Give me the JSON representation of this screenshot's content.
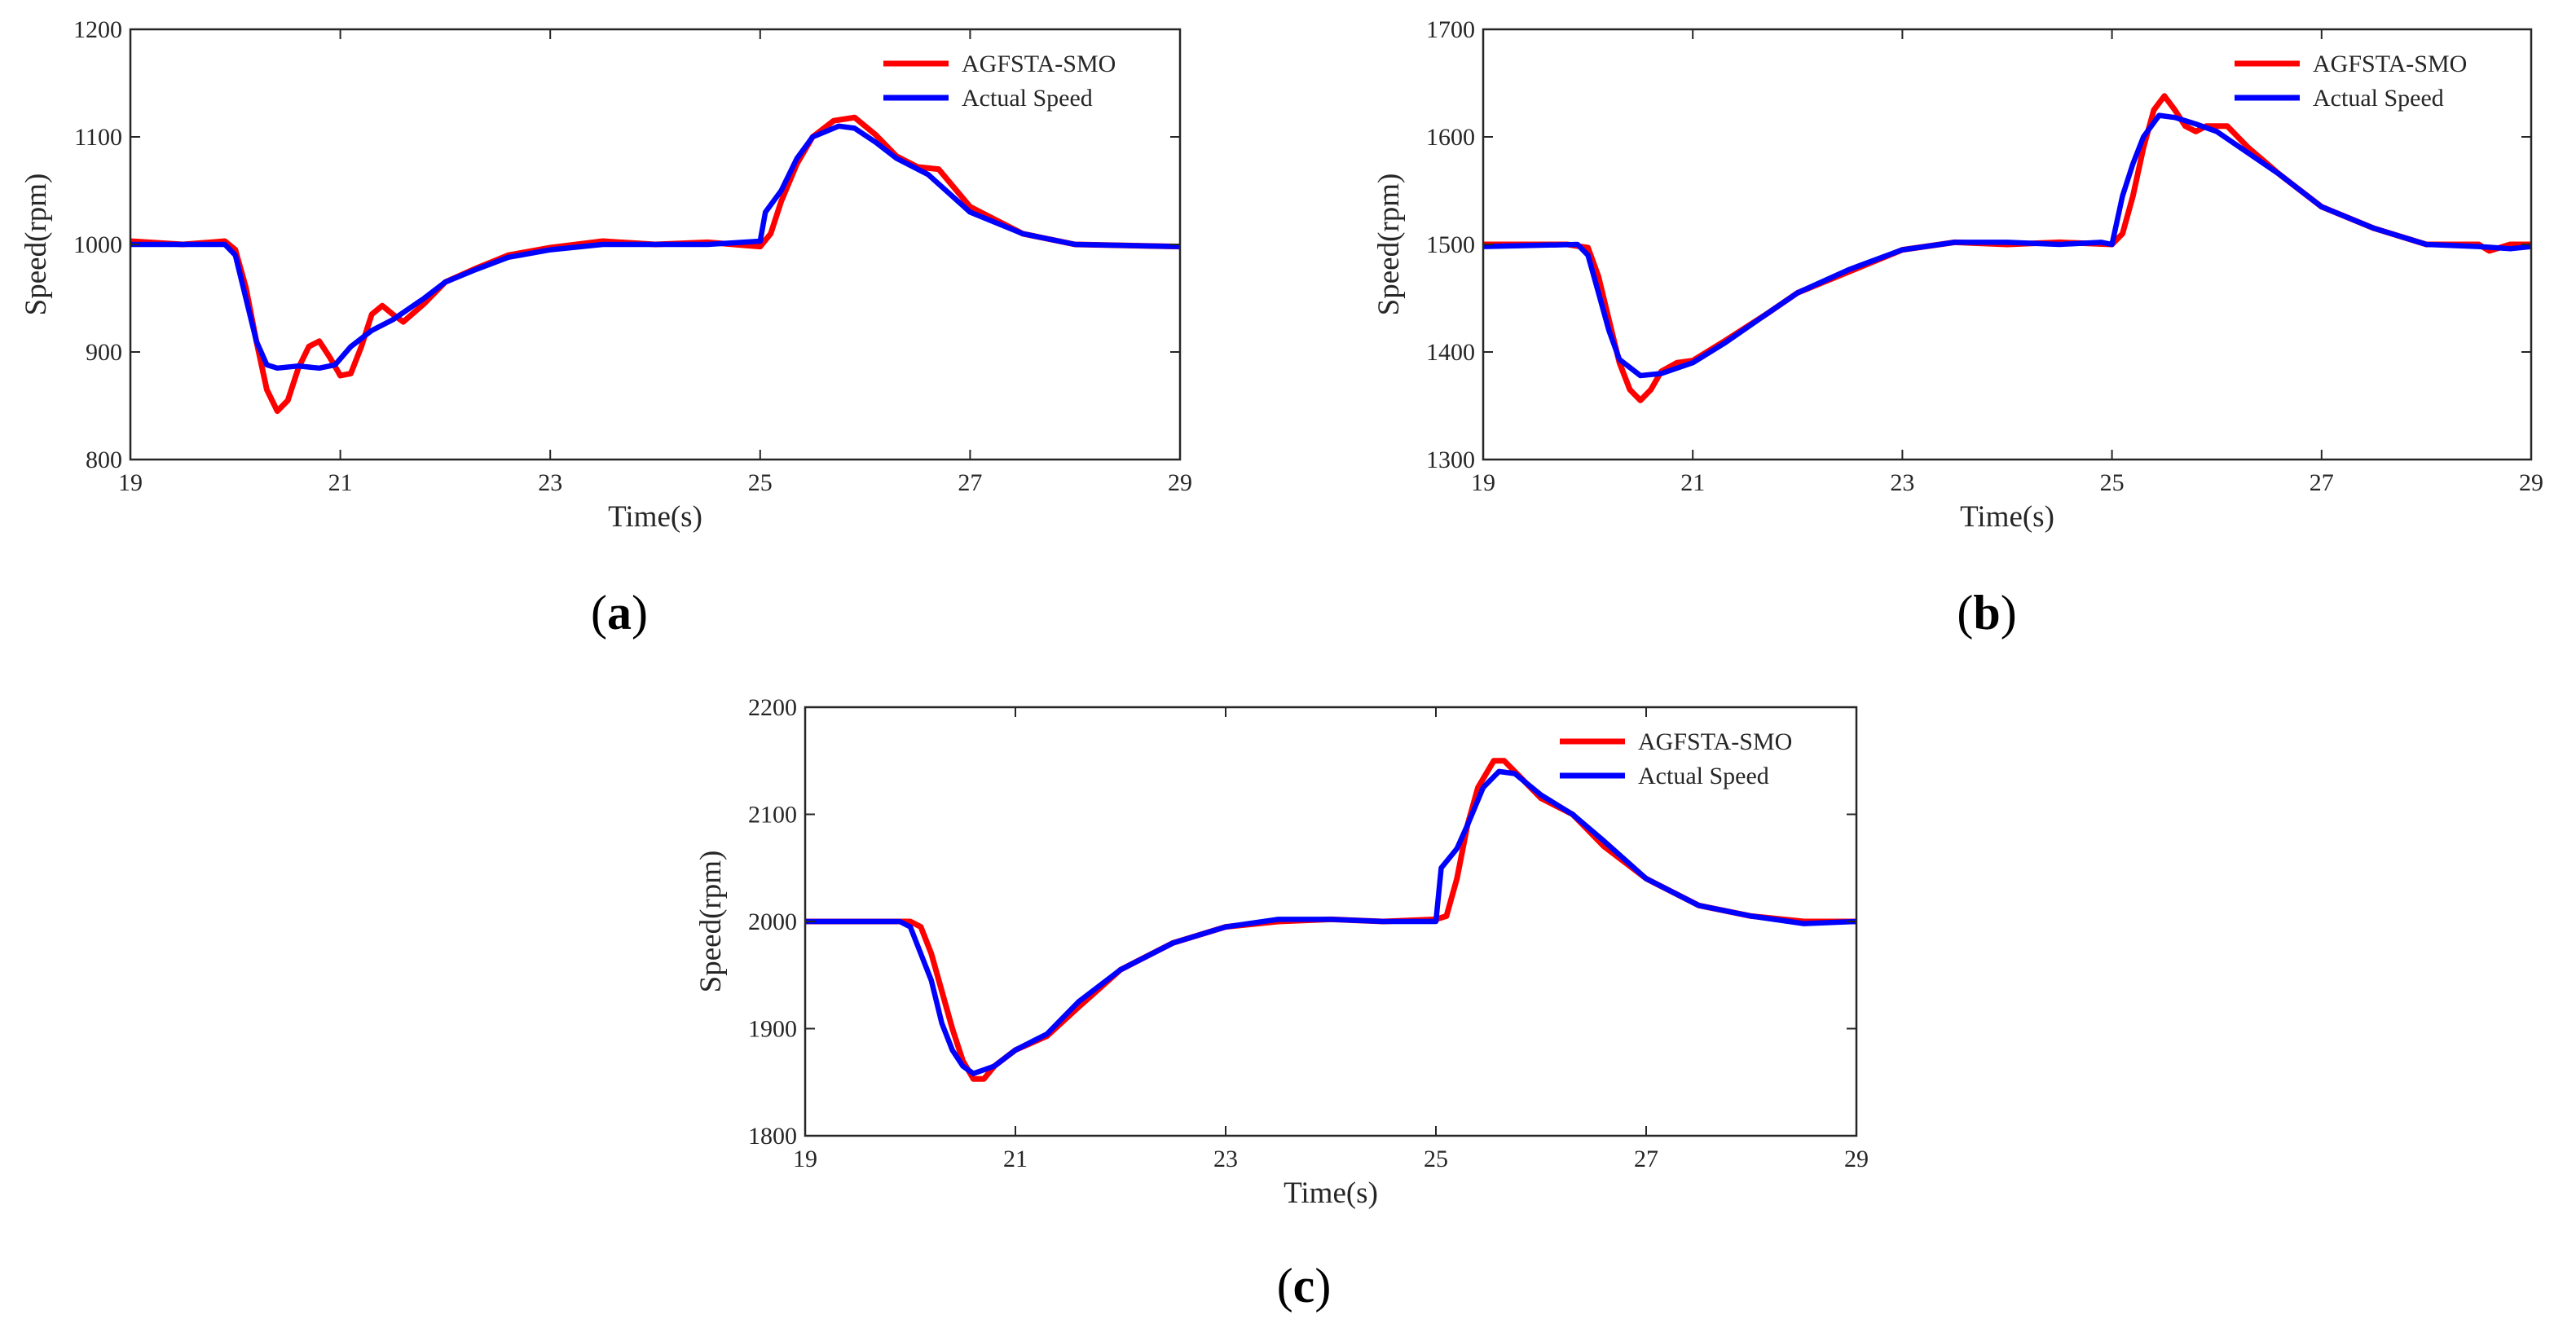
{
  "chart_data": [
    {
      "type": "line",
      "caption_letter": "a",
      "xlabel": "Time(s)",
      "ylabel": "Speed(rpm)",
      "xlim": [
        19,
        29
      ],
      "ylim": [
        800,
        1200
      ],
      "xticks": [
        "19",
        "21",
        "23",
        "25",
        "27",
        "29"
      ],
      "yticks": [
        "800",
        "900",
        "1000",
        "1100",
        "1200"
      ],
      "legend_position": "top-right",
      "series": [
        {
          "name": "AGFSTA-SMO",
          "color": "#ff0000",
          "points": [
            [
              19,
              1003
            ],
            [
              19.5,
              1000
            ],
            [
              19.9,
              1003
            ],
            [
              20.0,
              995
            ],
            [
              20.1,
              960
            ],
            [
              20.2,
              910
            ],
            [
              20.3,
              865
            ],
            [
              20.4,
              845
            ],
            [
              20.5,
              855
            ],
            [
              20.6,
              885
            ],
            [
              20.7,
              905
            ],
            [
              20.8,
              910
            ],
            [
              20.9,
              895
            ],
            [
              21.0,
              878
            ],
            [
              21.1,
              880
            ],
            [
              21.2,
              905
            ],
            [
              21.3,
              935
            ],
            [
              21.4,
              943
            ],
            [
              21.5,
              935
            ],
            [
              21.6,
              928
            ],
            [
              21.8,
              945
            ],
            [
              22.0,
              965
            ],
            [
              22.3,
              978
            ],
            [
              22.6,
              990
            ],
            [
              23.0,
              997
            ],
            [
              23.5,
              1003
            ],
            [
              24.0,
              1000
            ],
            [
              24.5,
              1002
            ],
            [
              25.0,
              998
            ],
            [
              25.1,
              1010
            ],
            [
              25.2,
              1040
            ],
            [
              25.35,
              1075
            ],
            [
              25.5,
              1100
            ],
            [
              25.7,
              1115
            ],
            [
              25.9,
              1118
            ],
            [
              26.1,
              1102
            ],
            [
              26.3,
              1082
            ],
            [
              26.5,
              1072
            ],
            [
              26.7,
              1070
            ],
            [
              27.0,
              1035
            ],
            [
              27.5,
              1010
            ],
            [
              28.0,
              1000
            ],
            [
              29.0,
              998
            ]
          ]
        },
        {
          "name": "Actual Speed",
          "color": "#0000ff",
          "points": [
            [
              19,
              1000
            ],
            [
              19.9,
              1000
            ],
            [
              20.0,
              990
            ],
            [
              20.1,
              950
            ],
            [
              20.2,
              910
            ],
            [
              20.3,
              888
            ],
            [
              20.4,
              885
            ],
            [
              20.6,
              887
            ],
            [
              20.8,
              885
            ],
            [
              20.95,
              888
            ],
            [
              21.1,
              905
            ],
            [
              21.3,
              920
            ],
            [
              21.5,
              930
            ],
            [
              21.8,
              950
            ],
            [
              22.0,
              965
            ],
            [
              22.3,
              977
            ],
            [
              22.6,
              988
            ],
            [
              23.0,
              995
            ],
            [
              23.5,
              1000
            ],
            [
              24.0,
              1000
            ],
            [
              24.5,
              1000
            ],
            [
              25.0,
              1003
            ],
            [
              25.05,
              1030
            ],
            [
              25.2,
              1050
            ],
            [
              25.35,
              1080
            ],
            [
              25.5,
              1100
            ],
            [
              25.75,
              1110
            ],
            [
              25.9,
              1108
            ],
            [
              26.1,
              1095
            ],
            [
              26.3,
              1080
            ],
            [
              26.6,
              1065
            ],
            [
              27.0,
              1030
            ],
            [
              27.5,
              1010
            ],
            [
              28.0,
              1000
            ],
            [
              29.0,
              998
            ]
          ]
        }
      ]
    },
    {
      "type": "line",
      "caption_letter": "b",
      "xlabel": "Time(s)",
      "ylabel": "Speed(rpm)",
      "xlim": [
        19,
        29
      ],
      "ylim": [
        1300,
        1700
      ],
      "xticks": [
        "19",
        "21",
        "23",
        "25",
        "27",
        "29"
      ],
      "yticks": [
        "1300",
        "1400",
        "1500",
        "1600",
        "1700"
      ],
      "legend_position": "top-right",
      "series": [
        {
          "name": "AGFSTA-SMO",
          "color": "#ff0000",
          "points": [
            [
              19,
              1500
            ],
            [
              19.8,
              1500
            ],
            [
              20.0,
              1497
            ],
            [
              20.1,
              1470
            ],
            [
              20.2,
              1430
            ],
            [
              20.3,
              1390
            ],
            [
              20.4,
              1365
            ],
            [
              20.5,
              1355
            ],
            [
              20.6,
              1365
            ],
            [
              20.7,
              1382
            ],
            [
              20.85,
              1390
            ],
            [
              21.0,
              1392
            ],
            [
              21.3,
              1410
            ],
            [
              21.7,
              1435
            ],
            [
              22.0,
              1455
            ],
            [
              22.5,
              1475
            ],
            [
              23.0,
              1495
            ],
            [
              23.5,
              1502
            ],
            [
              24.0,
              1500
            ],
            [
              24.5,
              1502
            ],
            [
              25.0,
              1500
            ],
            [
              25.1,
              1510
            ],
            [
              25.2,
              1545
            ],
            [
              25.3,
              1590
            ],
            [
              25.4,
              1625
            ],
            [
              25.5,
              1638
            ],
            [
              25.6,
              1625
            ],
            [
              25.7,
              1610
            ],
            [
              25.8,
              1605
            ],
            [
              25.9,
              1610
            ],
            [
              26.1,
              1610
            ],
            [
              26.3,
              1590
            ],
            [
              26.6,
              1565
            ],
            [
              27.0,
              1535
            ],
            [
              27.5,
              1515
            ],
            [
              28.0,
              1500
            ],
            [
              28.5,
              1500
            ],
            [
              28.6,
              1494
            ],
            [
              28.8,
              1500
            ],
            [
              29.0,
              1500
            ]
          ]
        },
        {
          "name": "Actual Speed",
          "color": "#0000ff",
          "points": [
            [
              19,
              1498
            ],
            [
              19.9,
              1500
            ],
            [
              20.0,
              1490
            ],
            [
              20.1,
              1455
            ],
            [
              20.2,
              1420
            ],
            [
              20.3,
              1393
            ],
            [
              20.5,
              1378
            ],
            [
              20.7,
              1380
            ],
            [
              21.0,
              1390
            ],
            [
              21.3,
              1408
            ],
            [
              21.7,
              1435
            ],
            [
              22.0,
              1455
            ],
            [
              22.5,
              1477
            ],
            [
              23.0,
              1495
            ],
            [
              23.5,
              1502
            ],
            [
              24.0,
              1502
            ],
            [
              24.5,
              1500
            ],
            [
              24.9,
              1502
            ],
            [
              25.0,
              1500
            ],
            [
              25.1,
              1545
            ],
            [
              25.2,
              1575
            ],
            [
              25.3,
              1600
            ],
            [
              25.45,
              1620
            ],
            [
              25.6,
              1618
            ],
            [
              25.8,
              1612
            ],
            [
              26.0,
              1605
            ],
            [
              26.3,
              1585
            ],
            [
              26.6,
              1565
            ],
            [
              27.0,
              1535
            ],
            [
              27.5,
              1515
            ],
            [
              28.0,
              1500
            ],
            [
              28.5,
              1498
            ],
            [
              28.8,
              1496
            ],
            [
              29.0,
              1498
            ]
          ]
        }
      ]
    },
    {
      "type": "line",
      "caption_letter": "c",
      "xlabel": "Time(s)",
      "ylabel": "Speed(rpm)",
      "xlim": [
        19,
        29
      ],
      "ylim": [
        1800,
        2200
      ],
      "xticks": [
        "19",
        "21",
        "23",
        "25",
        "27",
        "29"
      ],
      "yticks": [
        "1800",
        "1900",
        "2000",
        "2100",
        "2200"
      ],
      "legend_position": "top-right",
      "series": [
        {
          "name": "AGFSTA-SMO",
          "color": "#ff0000",
          "points": [
            [
              19,
              2000
            ],
            [
              20.0,
              2000
            ],
            [
              20.1,
              1995
            ],
            [
              20.2,
              1970
            ],
            [
              20.3,
              1935
            ],
            [
              20.4,
              1900
            ],
            [
              20.5,
              1870
            ],
            [
              20.6,
              1853
            ],
            [
              20.7,
              1853
            ],
            [
              20.8,
              1865
            ],
            [
              21.0,
              1880
            ],
            [
              21.3,
              1893
            ],
            [
              21.6,
              1920
            ],
            [
              22.0,
              1955
            ],
            [
              22.5,
              1980
            ],
            [
              23.0,
              1995
            ],
            [
              23.5,
              2000
            ],
            [
              24.0,
              2002
            ],
            [
              24.5,
              2000
            ],
            [
              25.0,
              2002
            ],
            [
              25.1,
              2005
            ],
            [
              25.2,
              2040
            ],
            [
              25.3,
              2090
            ],
            [
              25.4,
              2125
            ],
            [
              25.55,
              2150
            ],
            [
              25.65,
              2150
            ],
            [
              25.8,
              2135
            ],
            [
              26.0,
              2115
            ],
            [
              26.3,
              2100
            ],
            [
              26.6,
              2070
            ],
            [
              27.0,
              2040
            ],
            [
              27.5,
              2015
            ],
            [
              28.0,
              2005
            ],
            [
              28.5,
              2000
            ],
            [
              29.0,
              2000
            ]
          ]
        },
        {
          "name": "Actual Speed",
          "color": "#0000ff",
          "points": [
            [
              19,
              2000
            ],
            [
              19.9,
              2000
            ],
            [
              20.0,
              1995
            ],
            [
              20.1,
              1970
            ],
            [
              20.2,
              1945
            ],
            [
              20.3,
              1905
            ],
            [
              20.4,
              1880
            ],
            [
              20.5,
              1865
            ],
            [
              20.6,
              1858
            ],
            [
              20.8,
              1865
            ],
            [
              21.0,
              1880
            ],
            [
              21.3,
              1895
            ],
            [
              21.6,
              1925
            ],
            [
              22.0,
              1955
            ],
            [
              22.5,
              1980
            ],
            [
              23.0,
              1995
            ],
            [
              23.5,
              2002
            ],
            [
              24.0,
              2002
            ],
            [
              24.5,
              2000
            ],
            [
              25.0,
              2000
            ],
            [
              25.05,
              2050
            ],
            [
              25.2,
              2068
            ],
            [
              25.3,
              2090
            ],
            [
              25.45,
              2125
            ],
            [
              25.6,
              2140
            ],
            [
              25.75,
              2138
            ],
            [
              26.0,
              2118
            ],
            [
              26.3,
              2100
            ],
            [
              26.6,
              2075
            ],
            [
              27.0,
              2040
            ],
            [
              27.5,
              2015
            ],
            [
              28.0,
              2005
            ],
            [
              28.5,
              1998
            ],
            [
              29.0,
              2000
            ]
          ]
        }
      ]
    }
  ]
}
